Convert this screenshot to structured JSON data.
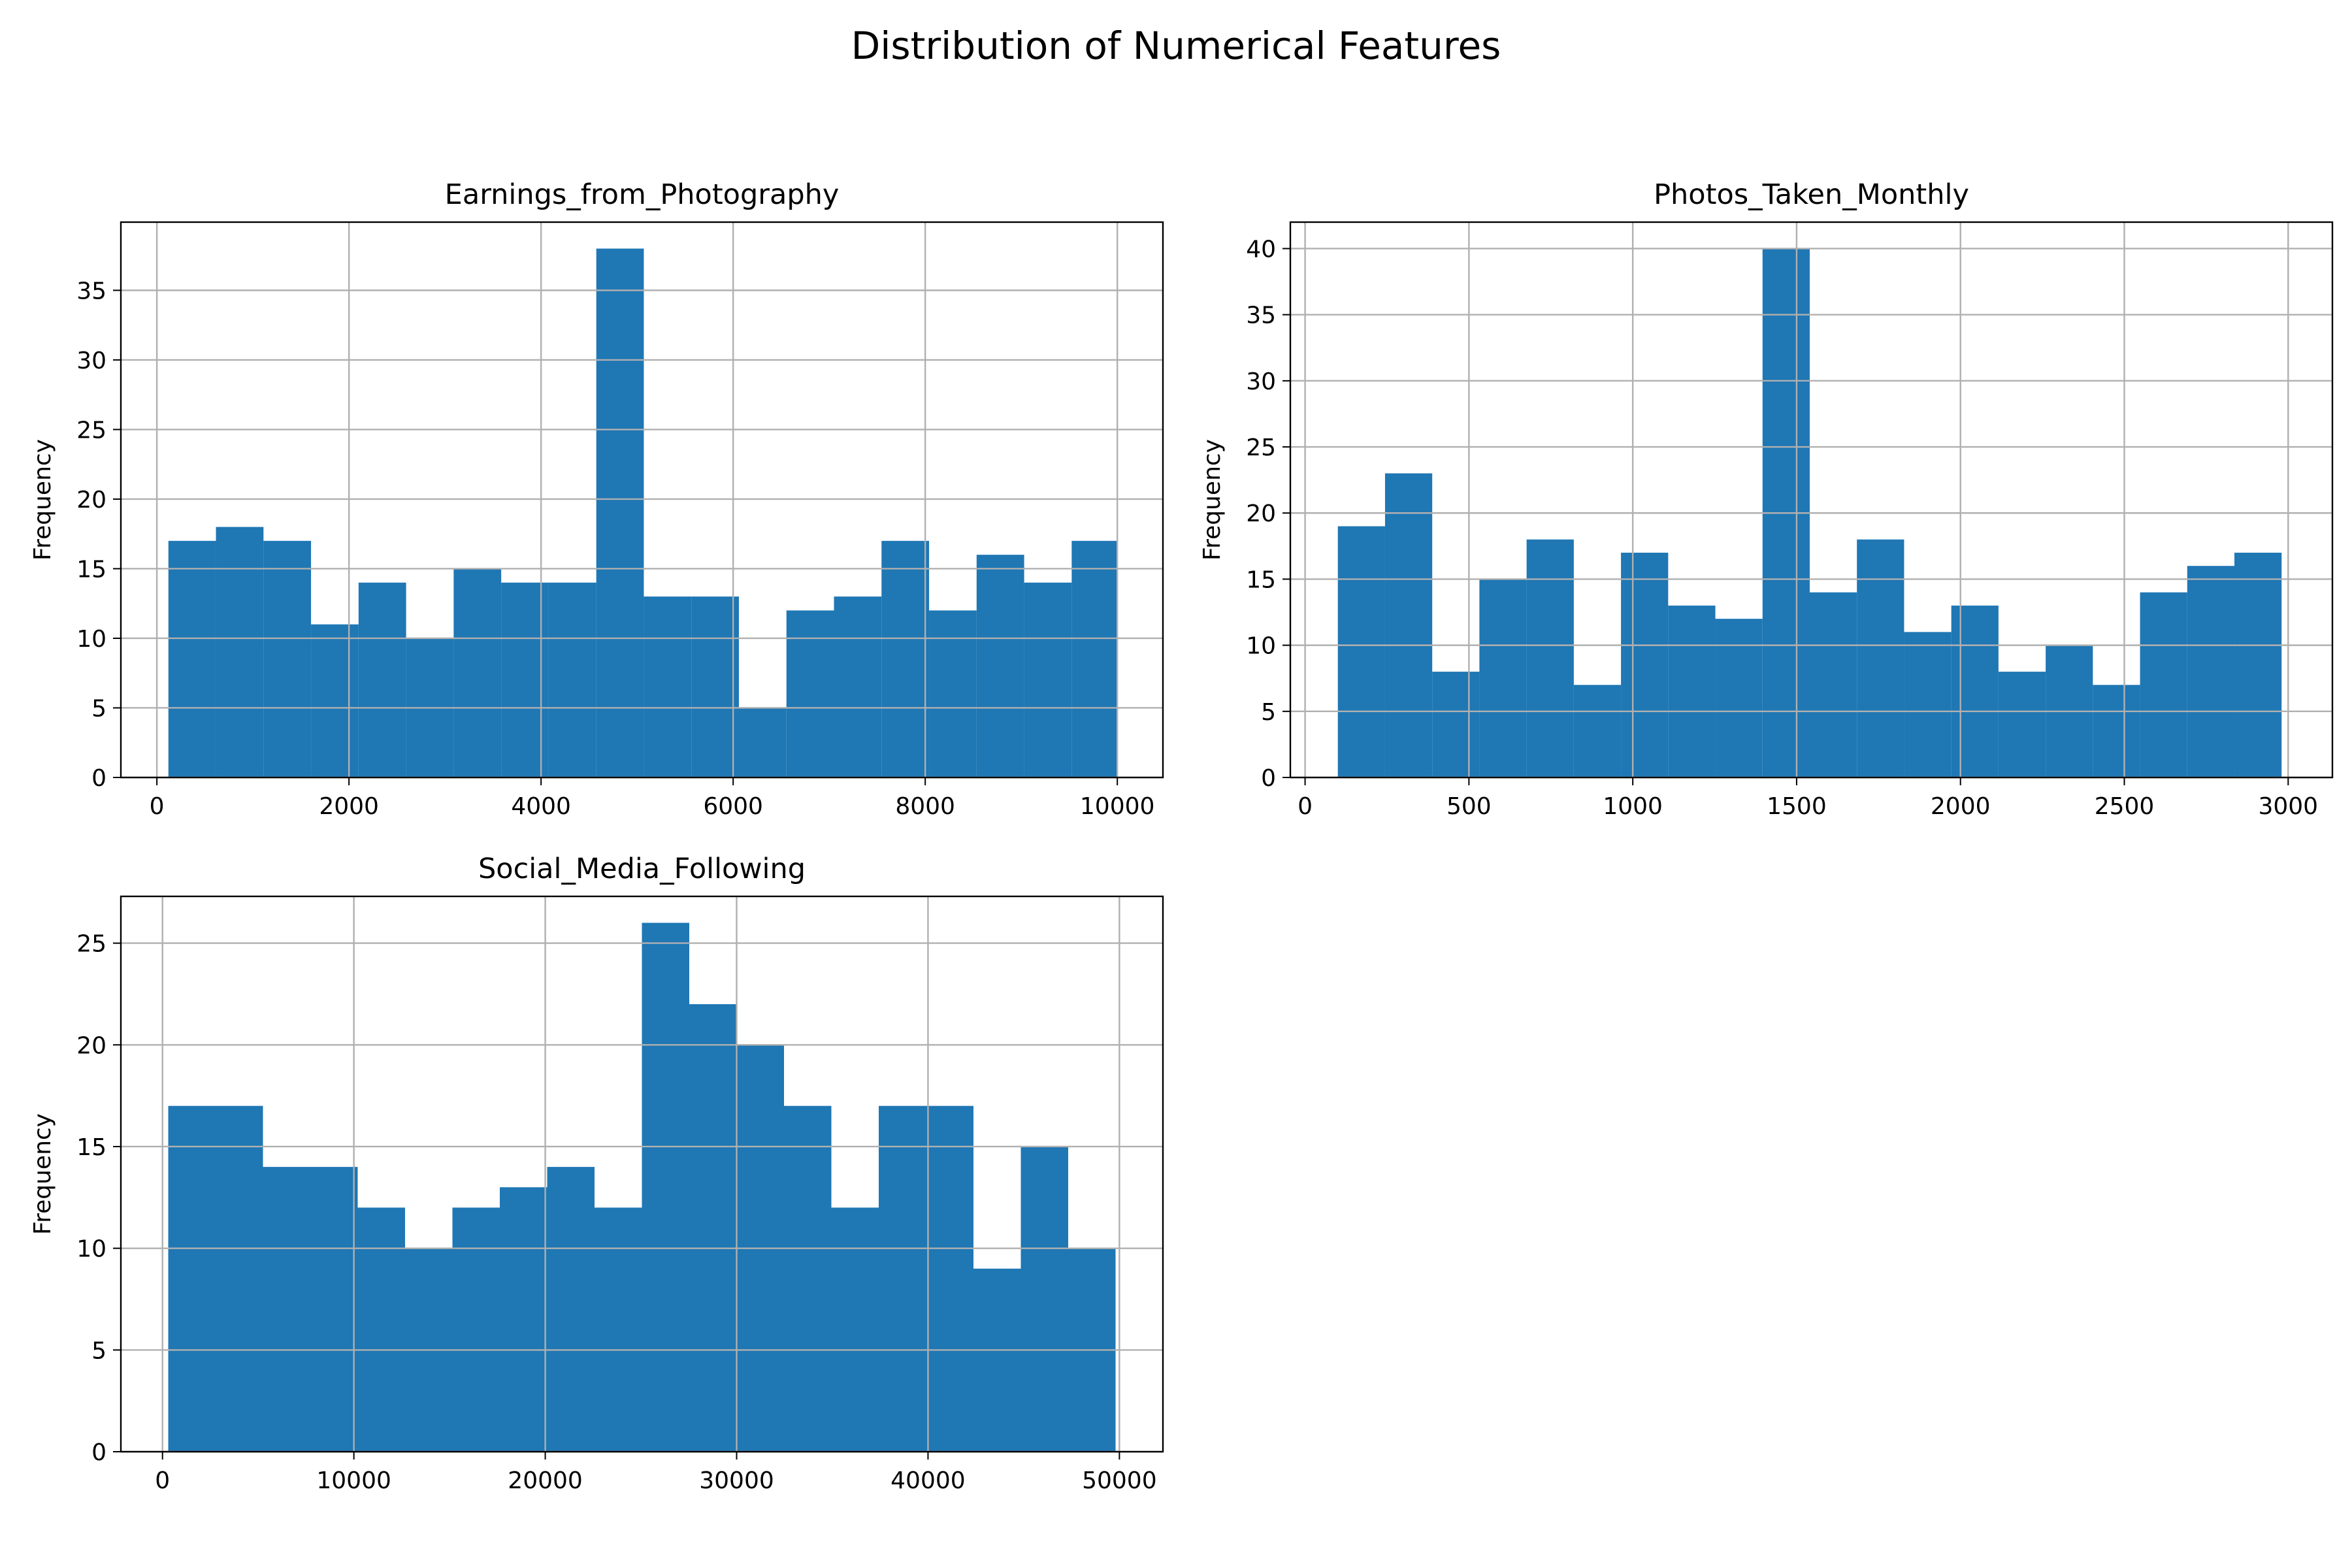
{
  "figure": {
    "title": "Distribution of Numerical Features",
    "bar_color": "#1f77b4",
    "grid_color": "#b0b0b0"
  },
  "chart_data": [
    {
      "type": "bar",
      "title": "Earnings_from_Photography",
      "xlabel": "",
      "ylabel": "Frequency",
      "grid": true,
      "xlim": [
        -375,
        10475
      ],
      "ylim": [
        0,
        39.9
      ],
      "xticks": [
        0,
        2000,
        4000,
        6000,
        8000,
        10000
      ],
      "yticks": [
        0,
        5,
        10,
        15,
        20,
        25,
        30,
        35
      ],
      "bin_edges": [
        120,
        615,
        1110,
        1605,
        2100,
        2595,
        3090,
        3585,
        4080,
        4575,
        5070,
        5565,
        6060,
        6555,
        7050,
        7545,
        8040,
        8535,
        9030,
        9525,
        10000
      ],
      "values": [
        17,
        18,
        17,
        11,
        14,
        10,
        15,
        14,
        14,
        38,
        13,
        13,
        5,
        12,
        13,
        17,
        12,
        16,
        14,
        17
      ]
    },
    {
      "type": "bar",
      "title": "Photos_Taken_Monthly",
      "xlabel": "",
      "ylabel": "Frequency",
      "grid": true,
      "xlim": [
        -45,
        3135
      ],
      "ylim": [
        0,
        42
      ],
      "xticks": [
        0,
        500,
        1000,
        1500,
        2000,
        2500,
        3000
      ],
      "yticks": [
        0,
        5,
        10,
        15,
        20,
        25,
        30,
        35,
        40
      ],
      "bin_edges": [
        100,
        244,
        388,
        532,
        676,
        820,
        964,
        1108,
        1252,
        1396,
        1540,
        1684,
        1828,
        1972,
        2116,
        2260,
        2404,
        2548,
        2692,
        2836,
        2980
      ],
      "values": [
        19,
        23,
        8,
        15,
        18,
        7,
        17,
        13,
        12,
        40,
        14,
        18,
        11,
        13,
        8,
        10,
        7,
        14,
        16,
        17
      ]
    },
    {
      "type": "bar",
      "title": "Social_Media_Following",
      "xlabel": "",
      "ylabel": "Frequency",
      "grid": true,
      "xlim": [
        -2175,
        52275
      ],
      "ylim": [
        0,
        27.3
      ],
      "xticks": [
        0,
        10000,
        20000,
        30000,
        40000,
        50000
      ],
      "yticks": [
        0,
        5,
        10,
        15,
        20,
        25
      ],
      "bin_edges": [
        300,
        2775,
        5250,
        7725,
        10200,
        12675,
        15150,
        17625,
        20100,
        22575,
        25050,
        27525,
        30000,
        32475,
        34950,
        37425,
        39900,
        42375,
        44850,
        47325,
        49800
      ],
      "values": [
        17,
        17,
        14,
        14,
        12,
        10,
        12,
        13,
        14,
        12,
        26,
        22,
        20,
        17,
        12,
        17,
        17,
        9,
        15,
        10
      ]
    }
  ]
}
